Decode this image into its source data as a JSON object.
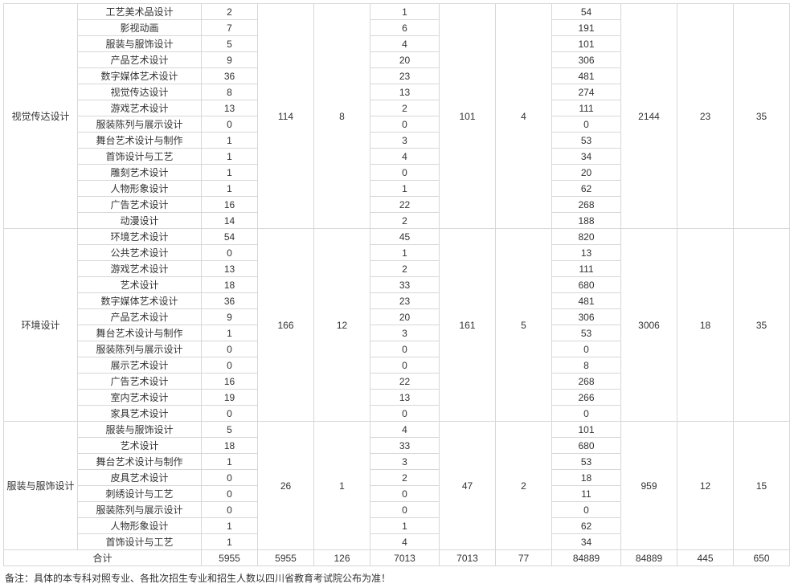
{
  "groups": [
    {
      "name": "视觉传达设计",
      "rows": [
        {
          "label": "工艺美术品设计",
          "a": "2",
          "b": "1",
          "c": "54"
        },
        {
          "label": "影视动画",
          "a": "7",
          "b": "6",
          "c": "191"
        },
        {
          "label": "服装与服饰设计",
          "a": "5",
          "b": "4",
          "c": "101"
        },
        {
          "label": "产品艺术设计",
          "a": "9",
          "b": "20",
          "c": "306"
        },
        {
          "label": "数字媒体艺术设计",
          "a": "36",
          "b": "23",
          "c": "481"
        },
        {
          "label": "视觉传达设计",
          "a": "8",
          "b": "13",
          "c": "274"
        },
        {
          "label": "游戏艺术设计",
          "a": "13",
          "b": "2",
          "c": "111"
        },
        {
          "label": "服装陈列与展示设计",
          "a": "0",
          "b": "0",
          "c": "0"
        },
        {
          "label": "舞台艺术设计与制作",
          "a": "1",
          "b": "3",
          "c": "53"
        },
        {
          "label": "首饰设计与工艺",
          "a": "1",
          "b": "4",
          "c": "34"
        },
        {
          "label": "雕刻艺术设计",
          "a": "1",
          "b": "0",
          "c": "20"
        },
        {
          "label": "人物形象设计",
          "a": "1",
          "b": "1",
          "c": "62"
        },
        {
          "label": "广告艺术设计",
          "a": "16",
          "b": "22",
          "c": "268"
        },
        {
          "label": "动漫设计",
          "a": "14",
          "b": "2",
          "c": "188"
        }
      ],
      "m1": "114",
      "m2": "8",
      "m3": "101",
      "m4": "4",
      "m5": "2144",
      "m6": "23",
      "m7": "35"
    },
    {
      "name": "环境设计",
      "rows": [
        {
          "label": "环境艺术设计",
          "a": "54",
          "b": "45",
          "c": "820"
        },
        {
          "label": "公共艺术设计",
          "a": "0",
          "b": "1",
          "c": "13"
        },
        {
          "label": "游戏艺术设计",
          "a": "13",
          "b": "2",
          "c": "111"
        },
        {
          "label": "艺术设计",
          "a": "18",
          "b": "33",
          "c": "680"
        },
        {
          "label": "数字媒体艺术设计",
          "a": "36",
          "b": "23",
          "c": "481"
        },
        {
          "label": "产品艺术设计",
          "a": "9",
          "b": "20",
          "c": "306"
        },
        {
          "label": "舞台艺术设计与制作",
          "a": "1",
          "b": "3",
          "c": "53"
        },
        {
          "label": "服装陈列与展示设计",
          "a": "0",
          "b": "0",
          "c": "0"
        },
        {
          "label": "展示艺术设计",
          "a": "0",
          "b": "0",
          "c": "8"
        },
        {
          "label": "广告艺术设计",
          "a": "16",
          "b": "22",
          "c": "268"
        },
        {
          "label": "室内艺术设计",
          "a": "19",
          "b": "13",
          "c": "266"
        },
        {
          "label": "家具艺术设计",
          "a": "0",
          "b": "0",
          "c": "0"
        }
      ],
      "m1": "166",
      "m2": "12",
      "m3": "161",
      "m4": "5",
      "m5": "3006",
      "m6": "18",
      "m7": "35"
    },
    {
      "name": "服装与服饰设计",
      "rows": [
        {
          "label": "服装与服饰设计",
          "a": "5",
          "b": "4",
          "c": "101"
        },
        {
          "label": "艺术设计",
          "a": "18",
          "b": "33",
          "c": "680"
        },
        {
          "label": "舞台艺术设计与制作",
          "a": "1",
          "b": "3",
          "c": "53"
        },
        {
          "label": "皮具艺术设计",
          "a": "0",
          "b": "2",
          "c": "18"
        },
        {
          "label": "刺绣设计与工艺",
          "a": "0",
          "b": "0",
          "c": "11"
        },
        {
          "label": "服装陈列与展示设计",
          "a": "0",
          "b": "0",
          "c": "0"
        },
        {
          "label": "人物形象设计",
          "a": "1",
          "b": "1",
          "c": "62"
        },
        {
          "label": "首饰设计与工艺",
          "a": "1",
          "b": "4",
          "c": "34"
        }
      ],
      "m1": "26",
      "m2": "1",
      "m3": "47",
      "m4": "2",
      "m5": "959",
      "m6": "12",
      "m7": "15"
    }
  ],
  "totals": {
    "label": "合计",
    "c2": "5955",
    "c3": "5955",
    "c4": "126",
    "c5": "7013",
    "c6": "7013",
    "c7": "77",
    "c8": "84889",
    "c9": "84889",
    "c10": "445",
    "c11": "650"
  },
  "note": "备注：具体的本专科对照专业、各批次招生专业和招生人数以四川省教育考试院公布为准！"
}
